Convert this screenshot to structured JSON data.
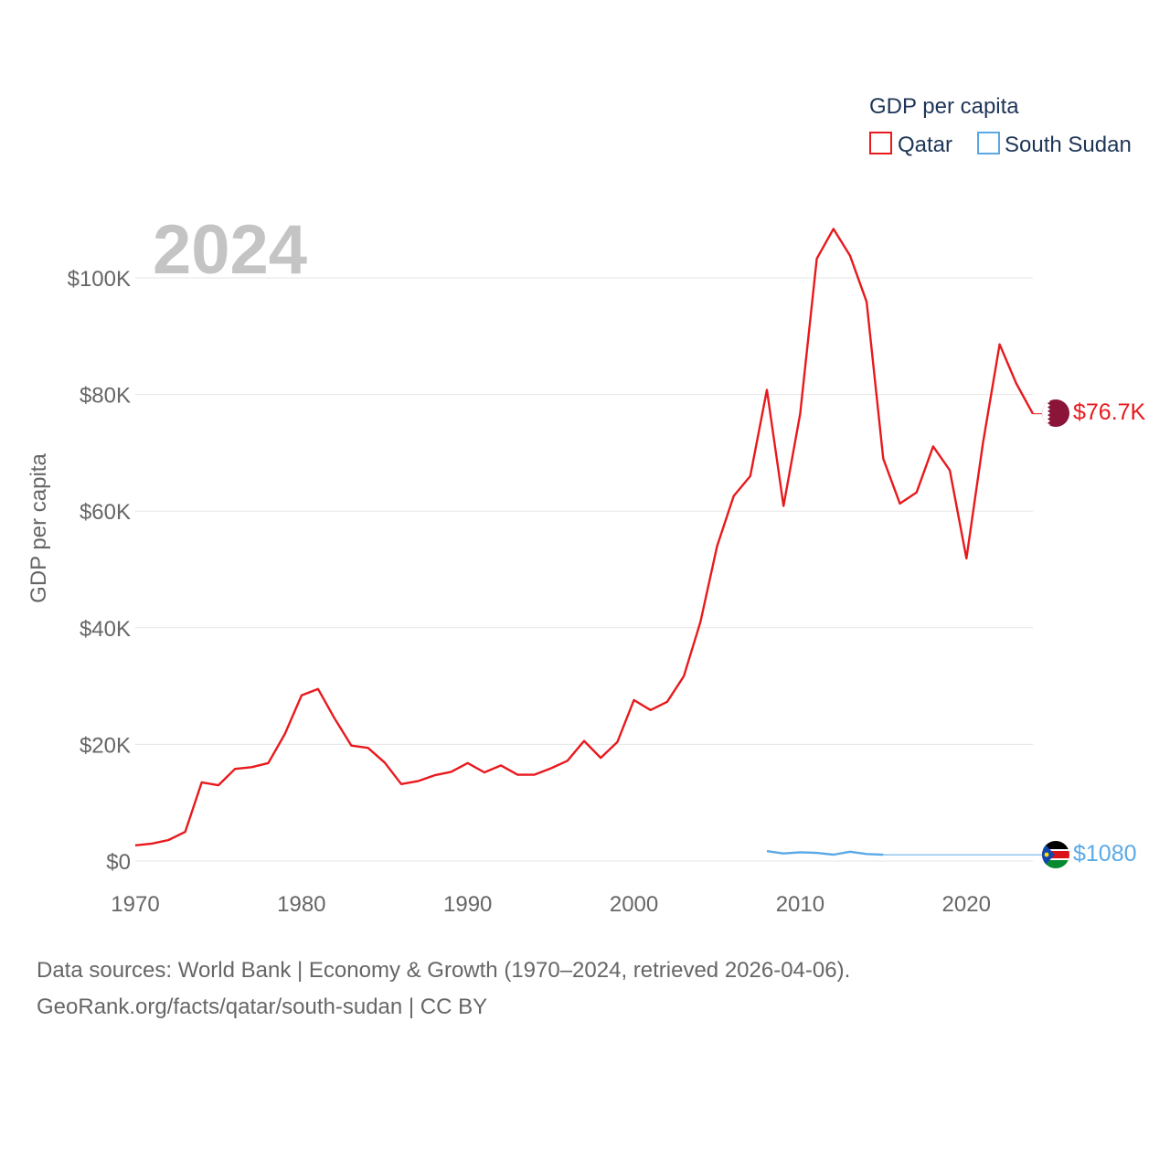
{
  "chart_data": {
    "type": "line",
    "year_label": "2024",
    "ylabel": "GDP per capita",
    "legend_title": "GDP per capita",
    "xlim": [
      1970,
      2024
    ],
    "ylim": [
      0,
      110000
    ],
    "y_ticks": [
      {
        "value": 0,
        "label": "$0"
      },
      {
        "value": 20000,
        "label": "$20K"
      },
      {
        "value": 40000,
        "label": "$40K"
      },
      {
        "value": 60000,
        "label": "$60K"
      },
      {
        "value": 80000,
        "label": "$80K"
      },
      {
        "value": 100000,
        "label": "$100K"
      }
    ],
    "x_ticks": [
      {
        "value": 1970,
        "label": "1970"
      },
      {
        "value": 1980,
        "label": "1980"
      },
      {
        "value": 1990,
        "label": "1990"
      },
      {
        "value": 2000,
        "label": "2000"
      },
      {
        "value": 2010,
        "label": "2010"
      },
      {
        "value": 2020,
        "label": "2020"
      }
    ],
    "series": [
      {
        "name": "Qatar",
        "color": "#e8191d",
        "end_label": "$76.7K",
        "x": [
          1970,
          1971,
          1972,
          1973,
          1974,
          1975,
          1976,
          1977,
          1978,
          1979,
          1980,
          1981,
          1982,
          1983,
          1984,
          1985,
          1986,
          1987,
          1988,
          1989,
          1990,
          1991,
          1992,
          1993,
          1994,
          1995,
          1996,
          1997,
          1998,
          1999,
          2000,
          2001,
          2002,
          2003,
          2004,
          2005,
          2006,
          2007,
          2008,
          2009,
          2010,
          2011,
          2012,
          2013,
          2014,
          2015,
          2016,
          2017,
          2018,
          2019,
          2020,
          2021,
          2022,
          2023,
          2024
        ],
        "values": [
          2700,
          3000,
          3600,
          5000,
          13500,
          13000,
          15800,
          16100,
          16800,
          21800,
          28400,
          29500,
          24400,
          19800,
          19400,
          16900,
          13200,
          13700,
          14700,
          15300,
          16800,
          15200,
          16400,
          14800,
          14800,
          15900,
          17200,
          20600,
          17700,
          20400,
          27600,
          25900,
          27300,
          31700,
          41000,
          54000,
          62600,
          66000,
          80800,
          60900,
          76700,
          103300,
          108400,
          103800,
          95900,
          69000,
          61300,
          63200,
          71100,
          67000,
          51900,
          71700,
          88600,
          81900,
          76700
        ]
      },
      {
        "name": "South Sudan",
        "color": "#5aa9e6",
        "end_label": "$1080",
        "x": [
          2008,
          2009,
          2010,
          2011,
          2012,
          2013,
          2014,
          2015,
          2016,
          2017,
          2018,
          2019,
          2020,
          2021,
          2022,
          2023,
          2024
        ],
        "values": [
          1700,
          1300,
          1500,
          1400,
          1100,
          1600,
          1200,
          1080,
          1080,
          1080,
          1080,
          1080,
          1080,
          1080,
          1080,
          1080,
          1080
        ],
        "solid_until": 2015
      }
    ]
  },
  "source": {
    "line1": "Data sources: World Bank | Economy & Growth (1970–2024, retrieved 2026-04-06).",
    "line2": "GeoRank.org/facts/qatar/south-sudan | CC BY"
  }
}
